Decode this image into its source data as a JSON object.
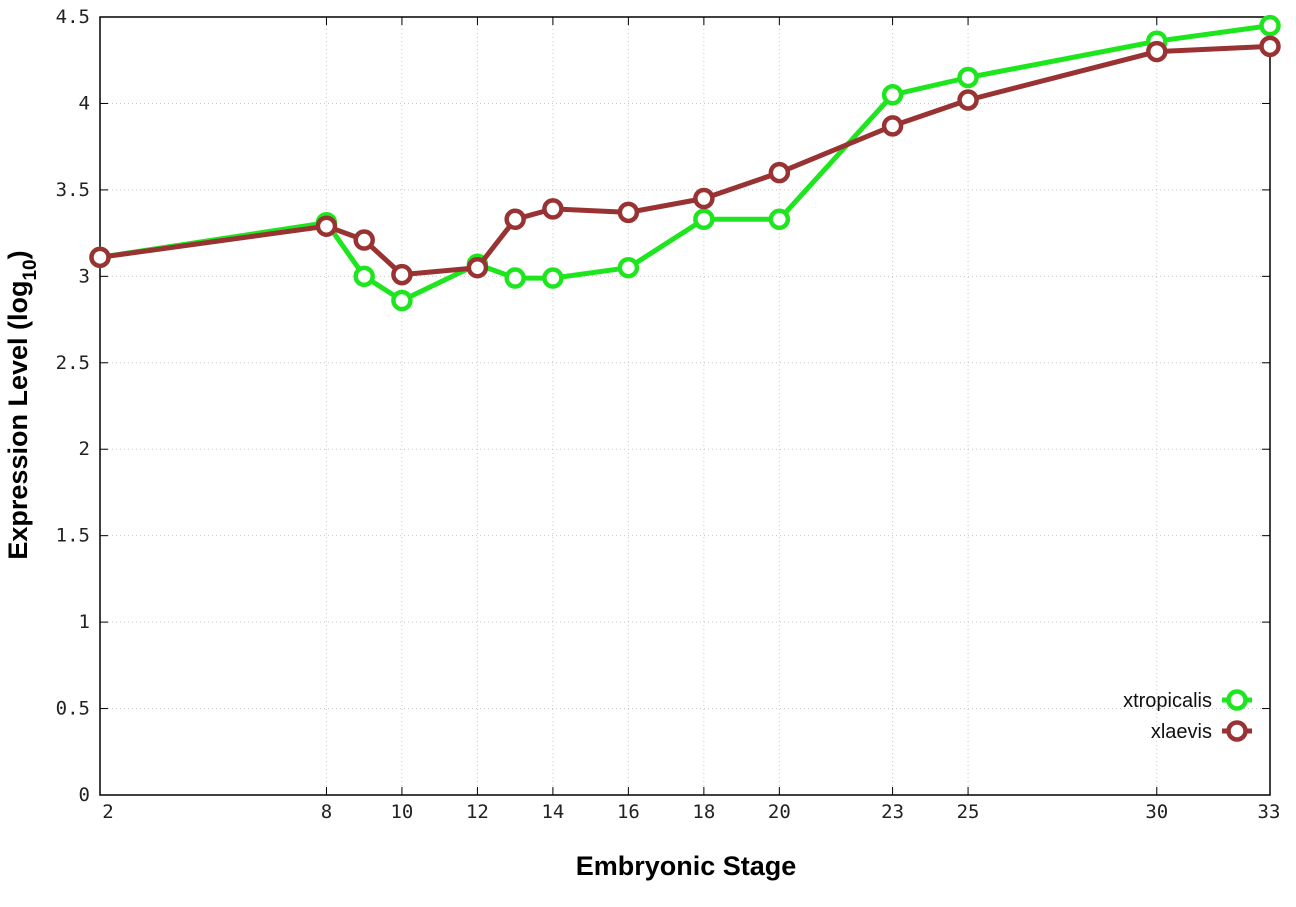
{
  "chart_data": {
    "type": "line",
    "title": "",
    "xlabel": "Embryonic Stage",
    "ylabel_main": "Expression Level (log",
    "ylabel_sub": "10",
    "ylabel_close": ")",
    "xlim": [
      2,
      33
    ],
    "ylim": [
      0,
      4.5
    ],
    "x": [
      2,
      8,
      9,
      10,
      12,
      13,
      14,
      16,
      18,
      20,
      23,
      25,
      30,
      33
    ],
    "xticks": [
      {
        "value": 2,
        "label": "2"
      },
      {
        "value": 8,
        "label": "8"
      },
      {
        "value": 10,
        "label": "10"
      },
      {
        "value": 12,
        "label": "12"
      },
      {
        "value": 14,
        "label": "14"
      },
      {
        "value": 16,
        "label": "16"
      },
      {
        "value": 18,
        "label": "18"
      },
      {
        "value": 20,
        "label": "20"
      },
      {
        "value": 23,
        "label": "23"
      },
      {
        "value": 25,
        "label": "25"
      },
      {
        "value": 30,
        "label": "30"
      },
      {
        "value": 33,
        "label": "33"
      }
    ],
    "yticks": [
      {
        "value": 0,
        "label": "0"
      },
      {
        "value": 0.5,
        "label": "0.5"
      },
      {
        "value": 1,
        "label": "1"
      },
      {
        "value": 1.5,
        "label": "1.5"
      },
      {
        "value": 2,
        "label": "2"
      },
      {
        "value": 2.5,
        "label": "2.5"
      },
      {
        "value": 3,
        "label": "3"
      },
      {
        "value": 3.5,
        "label": "3.5"
      },
      {
        "value": 4,
        "label": "4"
      },
      {
        "value": 4.5,
        "label": "4.5"
      }
    ],
    "grid": true,
    "legend_position": "bottom-right",
    "series": [
      {
        "name": "xtropicalis",
        "color": "#1ee61e",
        "values": [
          3.11,
          3.31,
          3.0,
          2.86,
          3.07,
          2.99,
          2.99,
          3.05,
          3.33,
          3.33,
          4.05,
          4.15,
          4.36,
          4.45
        ]
      },
      {
        "name": "xlaevis",
        "color": "#993333",
        "values": [
          3.11,
          3.29,
          3.21,
          3.01,
          3.05,
          3.33,
          3.39,
          3.37,
          3.45,
          3.6,
          3.87,
          4.02,
          4.3,
          4.33
        ]
      }
    ]
  }
}
